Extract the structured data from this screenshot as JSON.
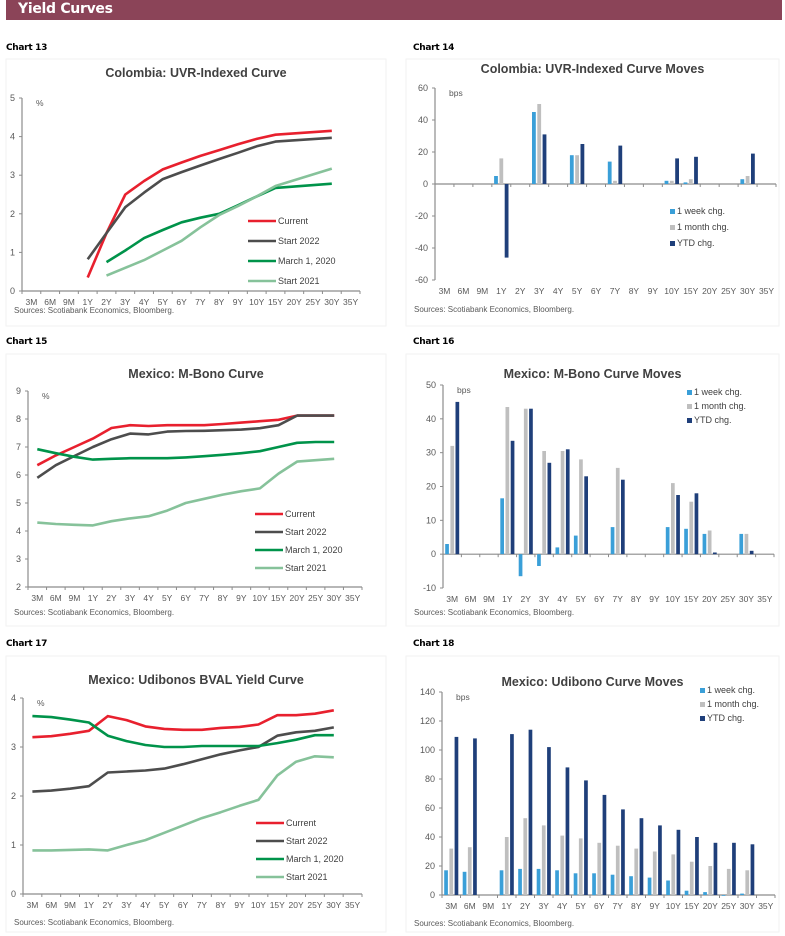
{
  "header": {
    "title": "Yield Curves"
  },
  "colors": {
    "current": "#E8202E",
    "start2022": "#4D4D4D",
    "march2020": "#00934A",
    "start2021": "#86C29A",
    "week": "#3A9FD8",
    "month": "#BFBFBF",
    "ytd": "#1F3F7A"
  },
  "source_note": "Sources: Scotiabank Economics, Bloomberg.",
  "chart_data": [
    {
      "label": "Chart 13",
      "type": "line",
      "title": "Colombia:  UVR-Indexed Curve",
      "ylabel": "%",
      "ylim": [
        0,
        5
      ],
      "yticks": [
        0,
        1,
        2,
        3,
        4,
        5
      ],
      "categories": [
        "3M",
        "6M",
        "9M",
        "1Y",
        "2Y",
        "3Y",
        "4Y",
        "5Y",
        "6Y",
        "7Y",
        "8Y",
        "9Y",
        "10Y",
        "15Y",
        "20Y",
        "25Y",
        "30Y",
        "35Y"
      ],
      "legend": "center-right",
      "series": [
        {
          "name": "Current",
          "color_key": "current",
          "values": [
            null,
            null,
            null,
            0.35,
            1.5,
            2.5,
            2.85,
            3.15,
            3.33,
            3.5,
            3.65,
            3.8,
            3.94,
            4.05,
            null,
            null,
            4.15,
            null
          ]
        },
        {
          "name": "Start 2022",
          "color_key": "start2022",
          "values": [
            null,
            null,
            null,
            0.82,
            1.5,
            2.17,
            2.55,
            2.9,
            3.08,
            3.25,
            3.42,
            3.58,
            3.75,
            3.87,
            null,
            null,
            3.97,
            null
          ]
        },
        {
          "name": "March 1, 2020",
          "color_key": "march2020",
          "values": [
            null,
            null,
            null,
            null,
            0.75,
            1.05,
            1.37,
            1.58,
            1.78,
            1.9,
            2.0,
            2.22,
            2.45,
            2.67,
            null,
            null,
            2.78,
            null
          ]
        },
        {
          "name": "Start 2021",
          "color_key": "start2021",
          "values": [
            null,
            null,
            null,
            null,
            0.4,
            0.6,
            0.8,
            1.05,
            1.3,
            1.65,
            1.97,
            2.2,
            2.45,
            2.72,
            null,
            null,
            3.17,
            null
          ]
        }
      ]
    },
    {
      "label": "Chart 14",
      "type": "bar",
      "title": "Colombia:  UVR-Indexed Curve Moves",
      "ylabel": "bps",
      "ylim": [
        -60,
        60
      ],
      "yticks": [
        -60,
        -40,
        -20,
        0,
        20,
        40,
        60
      ],
      "categories": [
        "3M",
        "6M",
        "9M",
        "1Y",
        "2Y",
        "3Y",
        "4Y",
        "5Y",
        "6Y",
        "7Y",
        "8Y",
        "9Y",
        "10Y",
        "15Y",
        "20Y",
        "25Y",
        "30Y",
        "35Y"
      ],
      "legend": "center-right",
      "series": [
        {
          "name": "1 week chg.",
          "color_key": "week",
          "values": [
            null,
            null,
            null,
            5,
            null,
            45,
            null,
            18,
            null,
            14,
            null,
            null,
            2,
            1,
            null,
            null,
            3,
            null
          ]
        },
        {
          "name": "1 month chg.",
          "color_key": "month",
          "values": [
            null,
            null,
            null,
            16,
            null,
            50,
            null,
            18,
            null,
            2,
            null,
            null,
            2,
            3,
            null,
            null,
            5,
            null
          ]
        },
        {
          "name": "YTD chg.",
          "color_key": "ytd",
          "values": [
            null,
            null,
            null,
            -46,
            null,
            31,
            null,
            25,
            null,
            24,
            null,
            null,
            16,
            17,
            null,
            null,
            19,
            null
          ]
        }
      ]
    },
    {
      "label": "Chart 15",
      "type": "line",
      "title": "Mexico: M-Bono Curve",
      "ylabel": "%",
      "ylim": [
        2,
        9
      ],
      "yticks": [
        2,
        3,
        4,
        5,
        6,
        7,
        8,
        9
      ],
      "categories": [
        "3M",
        "6M",
        "9M",
        "1Y",
        "2Y",
        "3Y",
        "4Y",
        "5Y",
        "6Y",
        "7Y",
        "8Y",
        "9Y",
        "10Y",
        "15Y",
        "20Y",
        "25Y",
        "30Y",
        "35Y"
      ],
      "legend": "bottom-right",
      "series": [
        {
          "name": "Current",
          "color_key": "current",
          "values": [
            6.35,
            6.7,
            7.0,
            7.3,
            7.68,
            7.78,
            7.75,
            7.78,
            7.78,
            7.78,
            7.82,
            7.87,
            7.92,
            7.97,
            8.12,
            8.12,
            8.12,
            null
          ]
        },
        {
          "name": "Start 2022",
          "color_key": "start2022",
          "values": [
            5.9,
            6.35,
            6.68,
            7.0,
            7.28,
            7.48,
            7.45,
            7.55,
            7.57,
            7.58,
            7.6,
            7.62,
            7.67,
            7.78,
            8.12,
            8.12,
            8.12,
            null
          ]
        },
        {
          "name": "March 1, 2020",
          "color_key": "march2020",
          "values": [
            6.92,
            6.78,
            6.65,
            6.55,
            6.58,
            6.6,
            6.6,
            6.6,
            6.63,
            6.67,
            6.72,
            6.78,
            6.85,
            7.0,
            7.15,
            7.18,
            7.18,
            null
          ]
        },
        {
          "name": "Start 2021",
          "color_key": "start2021",
          "values": [
            4.3,
            4.25,
            4.22,
            4.2,
            4.35,
            4.45,
            4.53,
            4.73,
            5.0,
            5.15,
            5.3,
            5.42,
            5.52,
            6.05,
            6.48,
            6.53,
            6.58,
            null
          ]
        }
      ]
    },
    {
      "label": "Chart 16",
      "type": "bar",
      "title": "Mexico: M-Bono Curve Moves",
      "ylabel": "bps",
      "ylim": [
        -10,
        50
      ],
      "yticks": [
        -10,
        0,
        10,
        20,
        30,
        40,
        50
      ],
      "categories": [
        "3M",
        "6M",
        "9M",
        "1Y",
        "2Y",
        "3Y",
        "4Y",
        "5Y",
        "6Y",
        "7Y",
        "8Y",
        "9Y",
        "10Y",
        "15Y",
        "20Y",
        "25Y",
        "30Y",
        "35Y"
      ],
      "legend": "top-right",
      "series": [
        {
          "name": "1 week chg.",
          "color_key": "week",
          "values": [
            3,
            null,
            null,
            16.5,
            -6.5,
            -3.5,
            2,
            5.5,
            null,
            8,
            null,
            null,
            8,
            7.5,
            6,
            null,
            6,
            null
          ]
        },
        {
          "name": "1 month chg.",
          "color_key": "month",
          "values": [
            32,
            null,
            null,
            43.5,
            43,
            30.5,
            30.5,
            28,
            null,
            25.5,
            null,
            null,
            21,
            15.5,
            7,
            null,
            6,
            null
          ]
        },
        {
          "name": "YTD chg.",
          "color_key": "ytd",
          "values": [
            45,
            null,
            null,
            33.5,
            43,
            27,
            31,
            23,
            null,
            22,
            null,
            null,
            17.5,
            18,
            0.5,
            null,
            1,
            null
          ]
        }
      ]
    },
    {
      "label": "Chart 17",
      "type": "line",
      "title": "Mexico: Udibonos  BVAL Yield Curve",
      "ylabel": "%",
      "ylim": [
        0,
        4
      ],
      "yticks": [
        0,
        1,
        2,
        3,
        4
      ],
      "categories": [
        "3M",
        "6M",
        "9M",
        "1Y",
        "2Y",
        "3Y",
        "4Y",
        "5Y",
        "6Y",
        "7Y",
        "8Y",
        "9Y",
        "10Y",
        "15Y",
        "20Y",
        "25Y",
        "30Y",
        "35Y"
      ],
      "legend": "bottom-right",
      "series": [
        {
          "name": "Current",
          "color_key": "current",
          "values": [
            3.2,
            3.22,
            3.27,
            3.33,
            3.63,
            3.55,
            3.42,
            3.37,
            3.35,
            3.35,
            3.39,
            3.41,
            3.46,
            3.65,
            3.65,
            3.68,
            3.75,
            null
          ]
        },
        {
          "name": "Start 2022",
          "color_key": "start2022",
          "values": [
            2.09,
            2.11,
            2.15,
            2.2,
            2.48,
            2.5,
            2.52,
            2.56,
            2.65,
            2.75,
            2.85,
            2.93,
            3.0,
            3.23,
            3.3,
            3.33,
            3.4,
            null
          ]
        },
        {
          "name": "March 1, 2020",
          "color_key": "march2020",
          "values": [
            3.63,
            3.61,
            3.56,
            3.5,
            3.23,
            3.12,
            3.04,
            3.0,
            3.0,
            3.02,
            3.02,
            3.02,
            3.02,
            3.08,
            3.15,
            3.24,
            3.24,
            null
          ]
        },
        {
          "name": "Start 2021",
          "color_key": "start2021",
          "values": [
            0.89,
            0.89,
            0.9,
            0.91,
            0.89,
            1.0,
            1.1,
            1.25,
            1.4,
            1.55,
            1.67,
            1.8,
            1.92,
            2.42,
            2.7,
            2.81,
            2.79,
            null
          ]
        }
      ]
    },
    {
      "label": "Chart 18",
      "type": "bar",
      "title": "Mexico: Udibono Curve Moves",
      "ylabel": "bps",
      "ylim": [
        0,
        140
      ],
      "yticks": [
        0,
        20,
        40,
        60,
        80,
        100,
        120,
        140
      ],
      "categories": [
        "3M",
        "6M",
        "9M",
        "1Y",
        "2Y",
        "3Y",
        "4Y",
        "5Y",
        "6Y",
        "7Y",
        "8Y",
        "9Y",
        "10Y",
        "15Y",
        "20Y",
        "25Y",
        "30Y",
        "35Y"
      ],
      "legend": "top-right",
      "series": [
        {
          "name": "1 week chg.",
          "color_key": "week",
          "values": [
            17,
            16,
            null,
            17,
            18,
            18,
            17,
            15,
            15,
            14,
            13,
            12,
            10,
            3,
            2,
            0,
            1,
            null
          ]
        },
        {
          "name": "1 month chg.",
          "color_key": "month",
          "values": [
            32,
            33,
            null,
            40,
            53,
            48,
            41,
            39,
            36,
            34,
            32,
            30,
            28,
            23,
            20,
            18,
            17,
            null
          ]
        },
        {
          "name": "YTD chg.",
          "color_key": "ytd",
          "values": [
            109,
            108,
            null,
            111,
            114,
            102,
            88,
            79,
            69,
            59,
            53,
            48,
            45,
            40,
            36,
            36,
            35,
            null
          ]
        }
      ]
    }
  ]
}
